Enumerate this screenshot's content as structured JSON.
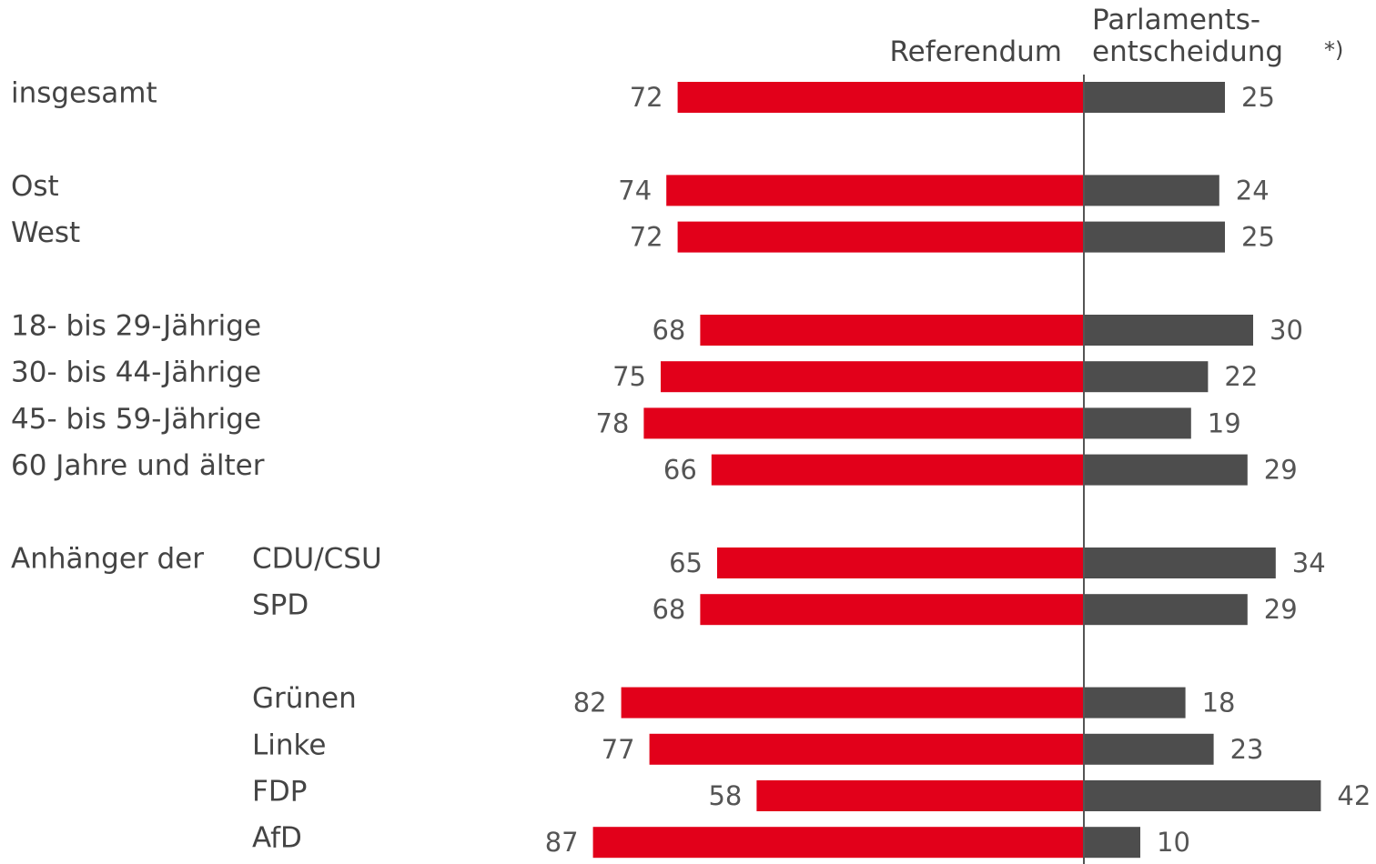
{
  "chart_data": {
    "type": "diverging_bar",
    "categories": [
      "insgesamt",
      null,
      "Ost",
      "West",
      null,
      "18- bis 29-Jährige",
      "30- bis 44-Jährige",
      "45- bis 59-Jährige",
      "60 Jahre und älter",
      null,
      "CDU/CSU",
      "SPD",
      null,
      "Grünen",
      "Linke",
      "FDP",
      "AfD"
    ],
    "group_label": "Anhänger der",
    "footnote_marker": "*)",
    "series": [
      {
        "name": "Referendum",
        "color": "#e2001a",
        "values": [
          72,
          null,
          74,
          72,
          null,
          68,
          75,
          78,
          66,
          null,
          65,
          68,
          null,
          82,
          77,
          58,
          87
        ]
      },
      {
        "name": "Parlaments-\nentscheidung",
        "color": "#4d4d4d",
        "values": [
          25,
          null,
          24,
          25,
          null,
          30,
          22,
          19,
          29,
          null,
          34,
          29,
          null,
          18,
          23,
          42,
          10
        ]
      }
    ]
  }
}
